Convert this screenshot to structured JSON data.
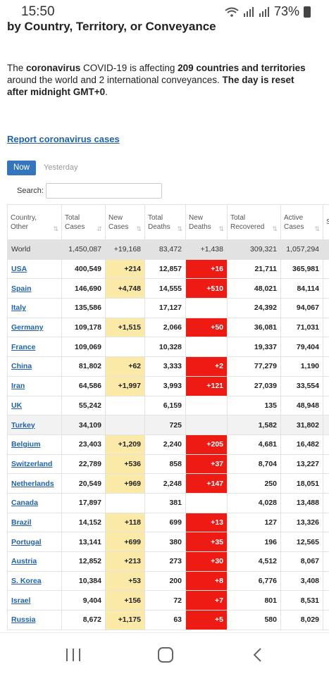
{
  "status": {
    "time": "15:50",
    "battery": "73%"
  },
  "heading": "by Country, Territory, or Conveyance",
  "intro": {
    "p1": "The ",
    "b1": "coronavirus",
    "p2": " COVID-19 is affecting ",
    "b2": "209 countries and territories",
    "p3": " around the world and 2 international conveyances. ",
    "b3": "The day is reset after midnight GMT+0",
    "p4": "."
  },
  "report_link": "Report coronavirus cases",
  "tabs": {
    "now": "Now",
    "yesterday": "Yesterday"
  },
  "search": {
    "label": "Search:",
    "value": ""
  },
  "table": {
    "headers": [
      {
        "l1": "Country,",
        "l2": "Other"
      },
      {
        "l1": "Total",
        "l2": "Cases"
      },
      {
        "l1": "New",
        "l2": "Cases"
      },
      {
        "l1": "Total",
        "l2": "Deaths"
      },
      {
        "l1": "New",
        "l2": "Deaths"
      },
      {
        "l1": "Total",
        "l2": "Recovered"
      },
      {
        "l1": "Active",
        "l2": "Cases"
      },
      {
        "l1": "S",
        "l2": ""
      }
    ],
    "rows": [
      {
        "country": "World",
        "total": "1,450,087",
        "new_cases": "+19,168",
        "deaths": "83,472",
        "new_deaths": "+1,438",
        "recovered": "309,321",
        "active": "1,057,294"
      },
      {
        "country": "USA",
        "total": "400,549",
        "new_cases": "+214",
        "deaths": "12,857",
        "new_deaths": "+16",
        "recovered": "21,711",
        "active": "365,981"
      },
      {
        "country": "Spain",
        "total": "146,690",
        "new_cases": "+4,748",
        "deaths": "14,555",
        "new_deaths": "+510",
        "recovered": "48,021",
        "active": "84,114"
      },
      {
        "country": "Italy",
        "total": "135,586",
        "new_cases": "",
        "deaths": "17,127",
        "new_deaths": "",
        "recovered": "24,392",
        "active": "94,067"
      },
      {
        "country": "Germany",
        "total": "109,178",
        "new_cases": "+1,515",
        "deaths": "2,066",
        "new_deaths": "+50",
        "recovered": "36,081",
        "active": "71,031"
      },
      {
        "country": "France",
        "total": "109,069",
        "new_cases": "",
        "deaths": "10,328",
        "new_deaths": "",
        "recovered": "19,337",
        "active": "79,404"
      },
      {
        "country": "China",
        "total": "81,802",
        "new_cases": "+62",
        "deaths": "3,333",
        "new_deaths": "+2",
        "recovered": "77,279",
        "active": "1,190"
      },
      {
        "country": "Iran",
        "total": "64,586",
        "new_cases": "+1,997",
        "deaths": "3,993",
        "new_deaths": "+121",
        "recovered": "27,039",
        "active": "33,554"
      },
      {
        "country": "UK",
        "total": "55,242",
        "new_cases": "",
        "deaths": "6,159",
        "new_deaths": "",
        "recovered": "135",
        "active": "48,948"
      },
      {
        "country": "Turkey",
        "total": "34,109",
        "new_cases": "",
        "deaths": "725",
        "new_deaths": "",
        "recovered": "1,582",
        "active": "31,802"
      },
      {
        "country": "Belgium",
        "total": "23,403",
        "new_cases": "+1,209",
        "deaths": "2,240",
        "new_deaths": "+205",
        "recovered": "4,681",
        "active": "16,482"
      },
      {
        "country": "Switzerland",
        "total": "22,789",
        "new_cases": "+536",
        "deaths": "858",
        "new_deaths": "+37",
        "recovered": "8,704",
        "active": "13,227"
      },
      {
        "country": "Netherlands",
        "total": "20,549",
        "new_cases": "+969",
        "deaths": "2,248",
        "new_deaths": "+147",
        "recovered": "250",
        "active": "18,051"
      },
      {
        "country": "Canada",
        "total": "17,897",
        "new_cases": "",
        "deaths": "381",
        "new_deaths": "",
        "recovered": "4,028",
        "active": "13,488"
      },
      {
        "country": "Brazil",
        "total": "14,152",
        "new_cases": "+118",
        "deaths": "699",
        "new_deaths": "+13",
        "recovered": "127",
        "active": "13,326"
      },
      {
        "country": "Portugal",
        "total": "13,141",
        "new_cases": "+699",
        "deaths": "380",
        "new_deaths": "+35",
        "recovered": "196",
        "active": "12,565"
      },
      {
        "country": "Austria",
        "total": "12,852",
        "new_cases": "+213",
        "deaths": "273",
        "new_deaths": "+30",
        "recovered": "4,512",
        "active": "8,067"
      },
      {
        "country": "S. Korea",
        "total": "10,384",
        "new_cases": "+53",
        "deaths": "200",
        "new_deaths": "+8",
        "recovered": "6,776",
        "active": "3,408"
      },
      {
        "country": "Israel",
        "total": "9,404",
        "new_cases": "+156",
        "deaths": "72",
        "new_deaths": "+7",
        "recovered": "801",
        "active": "8,531"
      },
      {
        "country": "Russia",
        "total": "8,672",
        "new_cases": "+1,175",
        "deaths": "63",
        "new_deaths": "+5",
        "recovered": "580",
        "active": "8,029"
      }
    ]
  },
  "colors": {
    "new_cases": "#fbe9a8",
    "new_deaths": "#ee1b14",
    "link": "#1f63b0",
    "tab_active": "#3475be"
  }
}
